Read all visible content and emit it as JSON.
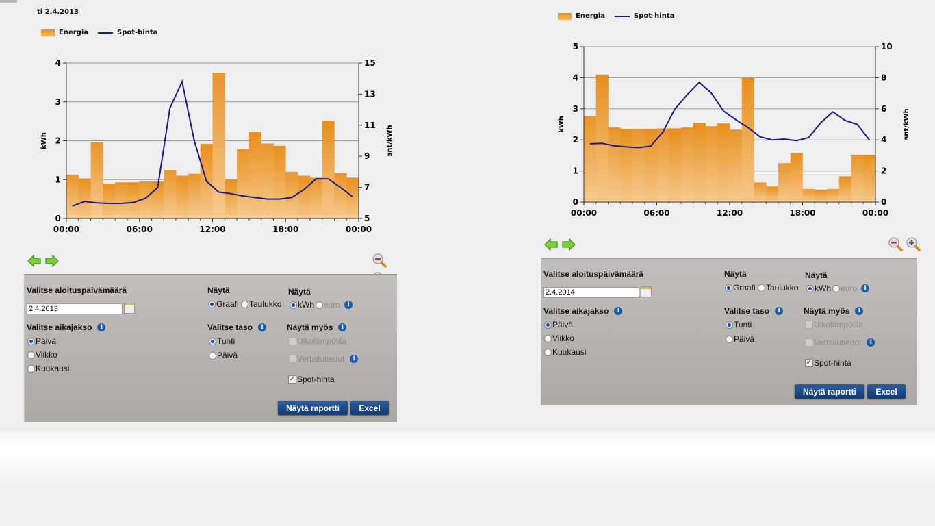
{
  "left": {
    "date_title": "ti 2.4.2013",
    "legend": {
      "bar": "Energia",
      "line": "Spot-hinta"
    },
    "form": {
      "start_date_label": "Valitse aloituspäivämäärä",
      "start_date_value": "2.4.2013",
      "period_label": "Valitse aikajakso",
      "period_options": [
        "Päivä",
        "Viikko",
        "Kuukausi"
      ],
      "period_selected": 0,
      "show_label": "Näytä",
      "show_options": [
        "Graafi",
        "Taulukko"
      ],
      "show_selected": 0,
      "unit_label": "Näytä",
      "unit_options": [
        "kWh",
        "euro"
      ],
      "unit_selected": 0,
      "level_label": "Valitse taso",
      "level_options": [
        "Tunti",
        "Päivä"
      ],
      "level_selected": 0,
      "also_label": "Näytä myös",
      "also_options": [
        {
          "label": "Ulkolämpötila",
          "checked": false,
          "disabled": true
        },
        {
          "label": "Vertailutiedot",
          "checked": false,
          "disabled": true
        },
        {
          "label": "Spot-hinta",
          "checked": true,
          "disabled": false
        }
      ],
      "report_button": "Näytä raportti",
      "excel_button": "Excel"
    }
  },
  "right": {
    "legend": {
      "bar": "Energia",
      "line": "Spot-hinta"
    },
    "form": {
      "start_date_label": "Valitse aloituspäivämäärä",
      "start_date_value": "2.4.2014",
      "period_label": "Valitse aikajakso",
      "period_options": [
        "Päivä",
        "Viikko",
        "Kuukausi"
      ],
      "period_selected": 0,
      "show_label": "Näytä",
      "show_options": [
        "Graafi",
        "Taulukko"
      ],
      "show_selected": 0,
      "unit_label": "Näytä",
      "unit_options": [
        "kWh",
        "euro"
      ],
      "unit_selected": 0,
      "level_label": "Valitse taso",
      "level_options": [
        "Tunti",
        "Päivä"
      ],
      "level_selected": 0,
      "also_label": "Näytä myös",
      "also_options": [
        {
          "label": "Ulkolämpötila",
          "checked": false,
          "disabled": true
        },
        {
          "label": "Vertailutiedot",
          "checked": false,
          "disabled": true
        },
        {
          "label": "Spot-hinta",
          "checked": true,
          "disabled": false
        }
      ],
      "report_button": "Näytä raportti",
      "excel_button": "Excel"
    }
  },
  "colors": {
    "bar": "#ec9524",
    "line": "#1a1a8c",
    "button": "#1a4a8a"
  },
  "chart_data": [
    {
      "type": "bar",
      "title": "ti 2.4.2013",
      "ylabel": "kWh",
      "y2label": "snt/kWh",
      "ylim": [
        0,
        4
      ],
      "y2lim": [
        5,
        15
      ],
      "yticks": [
        "0",
        "1",
        "2",
        "3",
        "4"
      ],
      "y2ticks": [
        "5",
        "7",
        "9",
        "11",
        "13",
        "15"
      ],
      "xticks": [
        "00:00",
        "06:00",
        "12:00",
        "18:00",
        "00:00"
      ],
      "grid": true,
      "legend": "top-left",
      "series": [
        {
          "name": "Energia",
          "type": "bar",
          "values": [
            1.13,
            1.03,
            1.97,
            0.9,
            0.93,
            0.93,
            0.95,
            0.95,
            1.25,
            1.1,
            1.15,
            1.92,
            3.75,
            1.0,
            1.78,
            2.23,
            1.93,
            1.87,
            1.2,
            1.1,
            1.05,
            2.52,
            1.17,
            1.05
          ]
        },
        {
          "name": "Spot-hinta",
          "type": "line",
          "axis": "y2",
          "values": [
            5.8,
            6.1,
            6.0,
            5.97,
            5.97,
            6.03,
            6.3,
            7.0,
            12.1,
            13.8,
            10.0,
            7.4,
            6.7,
            6.6,
            6.45,
            6.35,
            6.25,
            6.25,
            6.35,
            6.85,
            7.55,
            7.55,
            7.0,
            6.4
          ]
        }
      ]
    },
    {
      "type": "bar",
      "title": "",
      "ylabel": "kWh",
      "y2label": "snt/kWh",
      "ylim": [
        0,
        5
      ],
      "y2lim": [
        0,
        10
      ],
      "yticks": [
        "0",
        "1",
        "2",
        "3",
        "4",
        "5"
      ],
      "y2ticks": [
        "0",
        "2",
        "4",
        "6",
        "8",
        "10"
      ],
      "xticks": [
        "00:00",
        "06:00",
        "12:00",
        "18:00",
        "00:00"
      ],
      "grid": true,
      "legend": "top-left",
      "series": [
        {
          "name": "Energia",
          "type": "bar",
          "values": [
            2.77,
            4.1,
            2.4,
            2.35,
            2.35,
            2.35,
            2.37,
            2.37,
            2.4,
            2.55,
            2.44,
            2.53,
            2.33,
            4.0,
            0.63,
            0.5,
            1.25,
            1.58,
            0.42,
            0.4,
            0.42,
            0.83,
            1.52,
            1.52
          ]
        },
        {
          "name": "Spot-hinta",
          "type": "line",
          "axis": "y2",
          "values": [
            3.75,
            3.78,
            3.62,
            3.55,
            3.5,
            3.6,
            4.5,
            6.0,
            6.9,
            7.7,
            7.0,
            5.85,
            5.3,
            4.8,
            4.2,
            4.0,
            4.05,
            3.95,
            4.15,
            5.1,
            5.8,
            5.25,
            5.0,
            4.0
          ]
        }
      ]
    }
  ]
}
